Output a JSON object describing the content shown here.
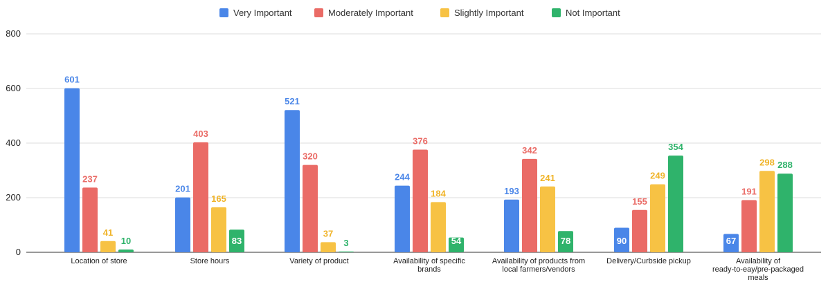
{
  "chart_data": {
    "type": "bar",
    "categories": [
      [
        "Location of store"
      ],
      [
        "Store hours"
      ],
      [
        "Variety of product"
      ],
      [
        "Availability of specific",
        "brands"
      ],
      [
        "Availability of products from",
        "local farmers/vendors"
      ],
      [
        "Delivery/Curbside pickup"
      ],
      [
        "Availability of",
        "ready-to-eay/pre-packaged",
        "meals"
      ]
    ],
    "series": [
      {
        "name": "Very Important",
        "color": "#4a86e8",
        "values": [
          601,
          201,
          521,
          244,
          193,
          90,
          67
        ]
      },
      {
        "name": "Moderately Important",
        "color": "#ea6b66",
        "values": [
          237,
          403,
          320,
          376,
          342,
          155,
          191
        ]
      },
      {
        "name": "Slightly Important",
        "color": "#f7c244",
        "values": [
          41,
          165,
          37,
          184,
          241,
          249,
          298
        ]
      },
      {
        "name": "Not Important",
        "color": "#2fb36b",
        "values": [
          10,
          83,
          3,
          54,
          78,
          354,
          288
        ]
      }
    ],
    "ylim": [
      0,
      800
    ],
    "yticks": [
      0,
      200,
      400,
      600,
      800
    ],
    "ytick_labels": [
      "0",
      "200",
      "400",
      "600",
      "800"
    ],
    "grid": true,
    "legend_position": "top"
  }
}
